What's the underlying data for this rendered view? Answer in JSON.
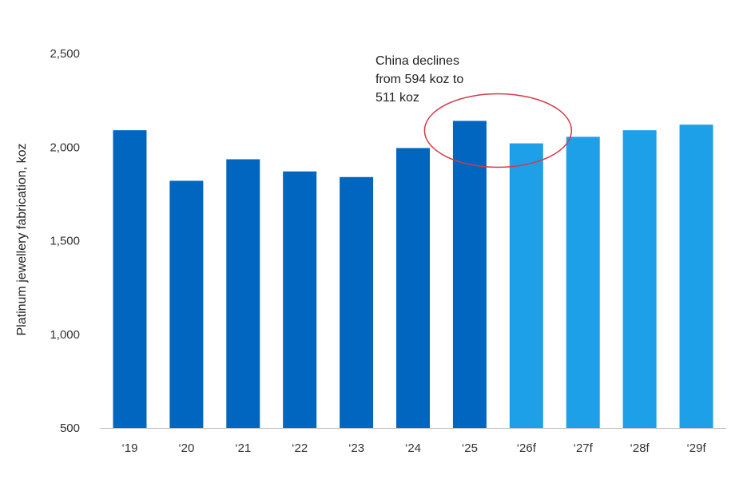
{
  "chart_data": {
    "type": "bar",
    "title": "",
    "xlabel": "",
    "ylabel": "Platinum jewellery fabrication, koz",
    "ylim": [
      500,
      2500
    ],
    "yticks": [
      500,
      1000,
      1500,
      2000,
      2500
    ],
    "ytick_labels": [
      "500",
      "1,000",
      "1,500",
      "2,000",
      "2,500"
    ],
    "grid": false,
    "categories": [
      "‘19",
      "‘20",
      "‘21",
      "‘22",
      "‘23",
      "‘24",
      "‘25",
      "‘26f",
      "‘27f",
      "‘28f",
      "‘29f"
    ],
    "values": [
      2090,
      1820,
      1935,
      1870,
      1840,
      1995,
      2140,
      2020,
      2055,
      2090,
      2120
    ],
    "forecast": [
      false,
      false,
      false,
      false,
      false,
      false,
      false,
      true,
      true,
      true,
      true
    ],
    "colors": {
      "actual": "#0066c0",
      "forecast": "#1ea0e8",
      "highlight": "#d23a4a",
      "axis": "#bbbbbb"
    },
    "annotation": {
      "lines": [
        "China declines",
        "from 594 koz to",
        "511 koz"
      ],
      "highlight_categories": [
        "‘25",
        "‘26f"
      ]
    }
  }
}
